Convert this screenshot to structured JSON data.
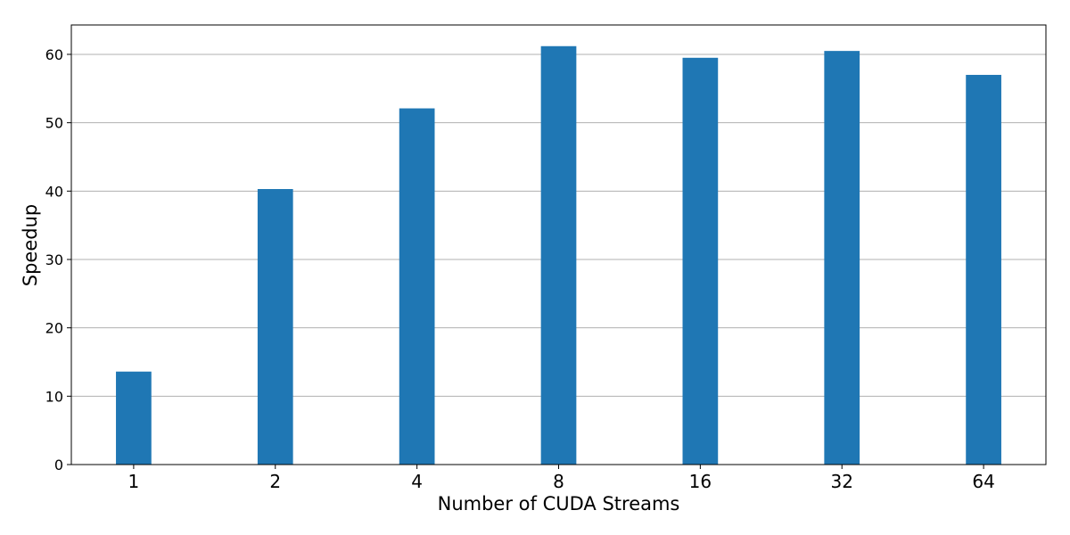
{
  "chart_data": {
    "type": "bar",
    "title": "",
    "xlabel": "Number of CUDA Streams",
    "ylabel": "Speedup",
    "categories": [
      "1",
      "2",
      "4",
      "8",
      "16",
      "32",
      "64"
    ],
    "values": [
      13.6,
      40.3,
      52.1,
      61.2,
      59.5,
      60.5,
      57.0
    ],
    "ylim": [
      0,
      64.3
    ],
    "yticks": [
      0,
      10,
      20,
      30,
      40,
      50,
      60
    ],
    "grid": "y-major",
    "legend": "none",
    "bar_color": "#1f77b4",
    "grid_color": "#b0b0b0"
  }
}
